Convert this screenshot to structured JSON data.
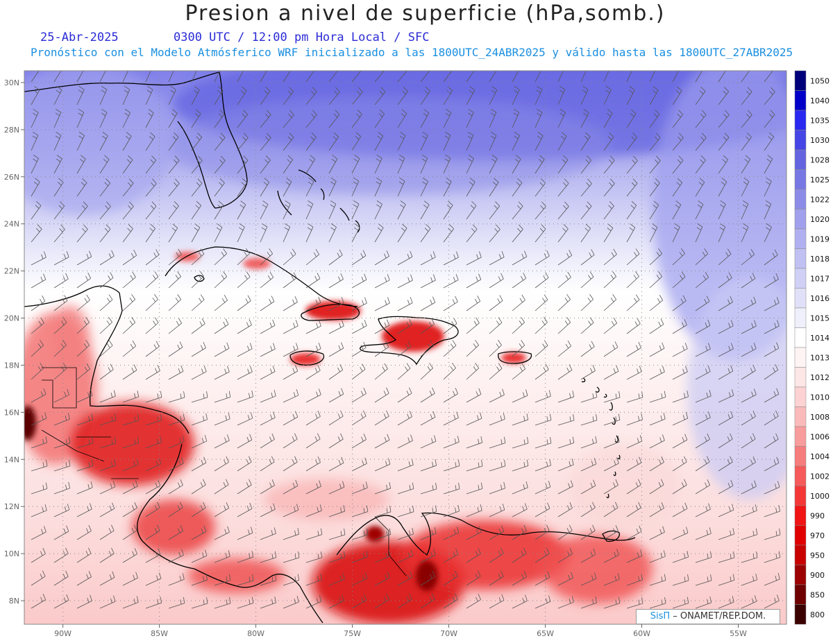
{
  "title": "Presion a nivel de superficie (hPa,somb.)",
  "date": "25-Abr-2025",
  "time_info": "0300 UTC / 12:00 pm Hora Local / SFC",
  "model_info": "Pronóstico con el Modelo Atmósferico WRF inicializado a las 1800UTC_24ABR2025 y válido hasta las  1800UTC_27ABR2025",
  "credit": {
    "logo": "SisΠ",
    "org": "– ONAMET/REP.DOM."
  },
  "map": {
    "lon_range": [
      -92,
      -52.5
    ],
    "lat_range": [
      7,
      30.5
    ],
    "lat_ticks": [
      {
        "v": 8,
        "label": "8N"
      },
      {
        "v": 10,
        "label": "10N"
      },
      {
        "v": 12,
        "label": "12N"
      },
      {
        "v": 14,
        "label": "14N"
      },
      {
        "v": 16,
        "label": "16N"
      },
      {
        "v": 18,
        "label": "18N"
      },
      {
        "v": 20,
        "label": "20N"
      },
      {
        "v": 22,
        "label": "22N"
      },
      {
        "v": 24,
        "label": "24N"
      },
      {
        "v": 26,
        "label": "26N"
      },
      {
        "v": 28,
        "label": "28N"
      },
      {
        "v": 30,
        "label": "30N"
      }
    ],
    "lon_ticks": [
      {
        "v": -90,
        "label": "90W"
      },
      {
        "v": -85,
        "label": "85W"
      },
      {
        "v": -80,
        "label": "80W"
      },
      {
        "v": -75,
        "label": "75W"
      },
      {
        "v": -70,
        "label": "70W"
      },
      {
        "v": -65,
        "label": "65W"
      },
      {
        "v": -60,
        "label": "60W"
      },
      {
        "v": -55,
        "label": "55W"
      }
    ],
    "grid": true
  },
  "legend": {
    "levels": [
      "800",
      "850",
      "900",
      "950",
      "970",
      "990",
      "1000",
      "1002",
      "1004",
      "1006",
      "1008",
      "1010",
      "1012",
      "1013",
      "1014",
      "1015",
      "1016",
      "1017",
      "1018",
      "1019",
      "1020",
      "1022",
      "1025",
      "1028",
      "1030",
      "1035",
      "1040",
      "1050"
    ],
    "colors": [
      "#3b0000",
      "#6e0000",
      "#9c0000",
      "#c80000",
      "#e00000",
      "#f01414",
      "#f43838",
      "#f65a5a",
      "#f77c7c",
      "#f99c9c",
      "#fbbaba",
      "#fcd2d2",
      "#fde6e6",
      "#fef4f4",
      "#ffffff",
      "#f0f0fc",
      "#e0e0f8",
      "#d0d0f6",
      "#c0c0f3",
      "#b0b0f0",
      "#a0a0ec",
      "#8c8ce8",
      "#7878e4",
      "#6464e0",
      "#4646e6",
      "#2828f0",
      "#0000c8",
      "#00007a"
    ]
  }
}
